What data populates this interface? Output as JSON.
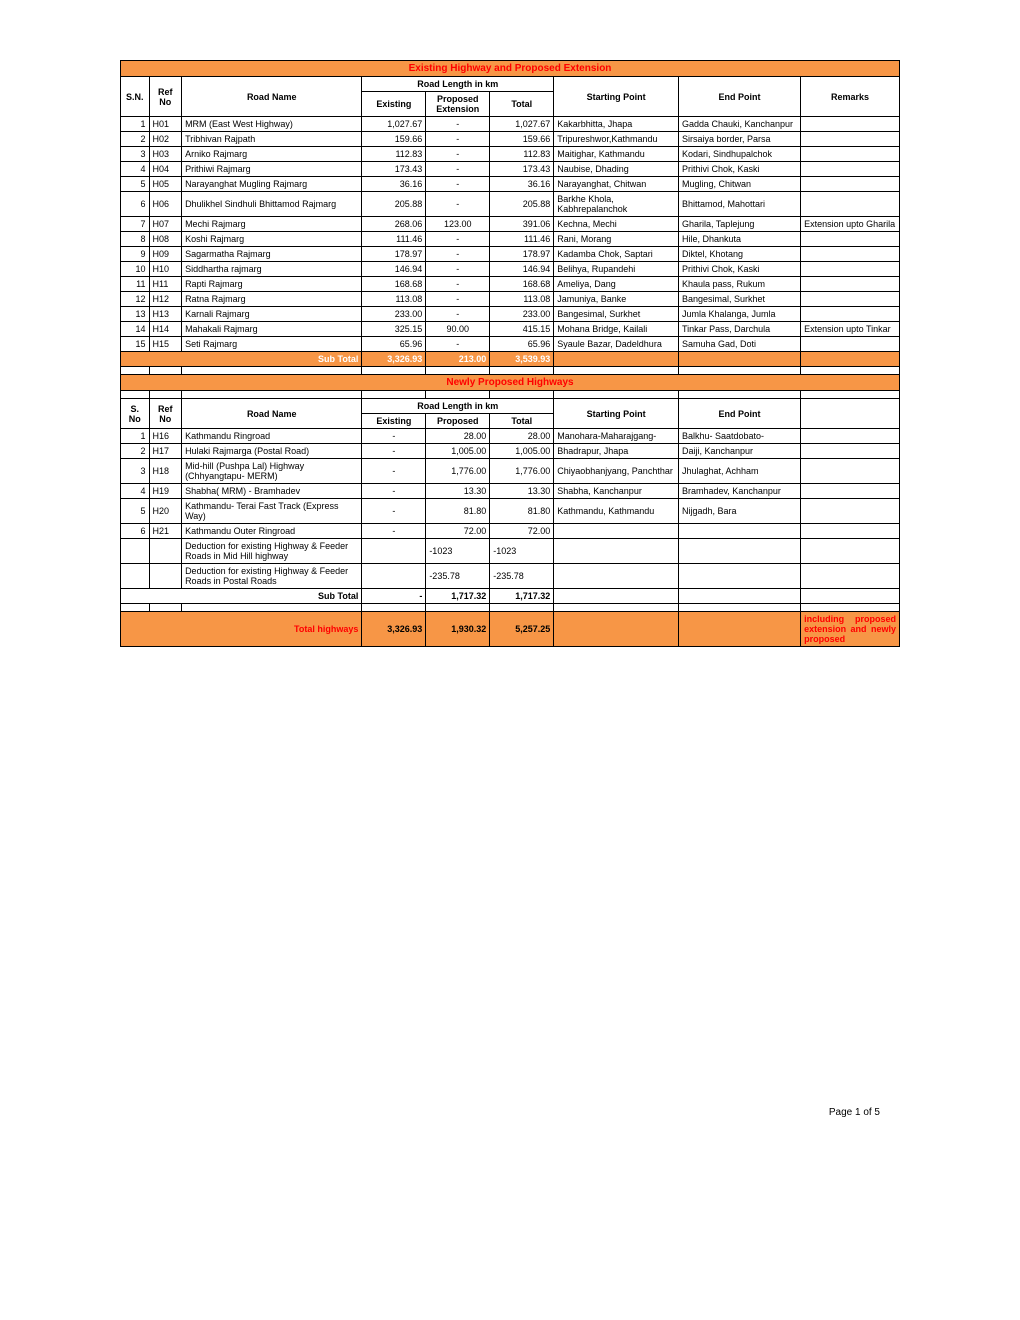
{
  "colors": {
    "header_bg": "#f79646",
    "header_text_red": "#ff0000",
    "subtotal_text": "#ffffff",
    "border": "#000000",
    "background": "#ffffff"
  },
  "section1": {
    "title": "Existing Highway and Proposed Extension",
    "roadLengthHeader": "Road Length in km",
    "headers": {
      "sn": "S.N.",
      "ref": "Ref No",
      "name": "Road Name",
      "existing": "Existing",
      "proposed": "Proposed Extension",
      "total": "Total",
      "start": "Starting Point",
      "end": "End Point",
      "remarks": "Remarks"
    },
    "rows": [
      {
        "sn": "1",
        "ref": "H01",
        "name": "MRM (East West Highway)",
        "existing": "1,027.67",
        "proposed": "-",
        "total": "1,027.67",
        "start": "Kakarbhitta, Jhapa",
        "end": "Gadda Chauki, Kanchanpur",
        "remarks": ""
      },
      {
        "sn": "2",
        "ref": "H02",
        "name": "Tribhivan Rajpath",
        "existing": "159.66",
        "proposed": "-",
        "total": "159.66",
        "start": "Tripureshwor,Kathmandu",
        "end": "Sirsaiya border, Parsa",
        "remarks": ""
      },
      {
        "sn": "3",
        "ref": "H03",
        "name": "Arniko Rajmarg",
        "existing": "112.83",
        "proposed": "-",
        "total": "112.83",
        "start": "Maitighar, Kathmandu",
        "end": "Kodari, Sindhupalchok",
        "remarks": ""
      },
      {
        "sn": "4",
        "ref": "H04",
        "name": "Prithiwi Rajmarg",
        "existing": "173.43",
        "proposed": "-",
        "total": "173.43",
        "start": "Naubise, Dhading",
        "end": "Prithivi Chok, Kaski",
        "remarks": ""
      },
      {
        "sn": "5",
        "ref": "H05",
        "name": "Narayanghat Mugling Rajmarg",
        "existing": "36.16",
        "proposed": "-",
        "total": "36.16",
        "start": "Narayanghat, Chitwan",
        "end": "Mugling, Chitwan",
        "remarks": ""
      },
      {
        "sn": "6",
        "ref": "H06",
        "name": "Dhulikhel Sindhuli Bhittamod Rajmarg",
        "existing": "205.88",
        "proposed": "-",
        "total": "205.88",
        "start": "Barkhe Khola, Kabhrepalanchok",
        "end": "Bhittamod, Mahottari",
        "remarks": ""
      },
      {
        "sn": "7",
        "ref": "H07",
        "name": "Mechi Rajmarg",
        "existing": "268.06",
        "proposed": "123.00",
        "total": "391.06",
        "start": "Kechna, Mechi",
        "end": "Gharila, Taplejung",
        "remarks": "Extension upto Gharila"
      },
      {
        "sn": "8",
        "ref": "H08",
        "name": "Koshi Rajmarg",
        "existing": "111.46",
        "proposed": "-",
        "total": "111.46",
        "start": "Rani, Morang",
        "end": "Hile, Dhankuta",
        "remarks": ""
      },
      {
        "sn": "9",
        "ref": "H09",
        "name": "Sagarmatha Rajmarg",
        "existing": "178.97",
        "proposed": "-",
        "total": "178.97",
        "start": "Kadamba Chok, Saptari",
        "end": "Diktel, Khotang",
        "remarks": ""
      },
      {
        "sn": "10",
        "ref": "H10",
        "name": "Siddhartha rajmarg",
        "existing": "146.94",
        "proposed": "-",
        "total": "146.94",
        "start": "Belihya, Rupandehi",
        "end": "Prithivi Chok, Kaski",
        "remarks": ""
      },
      {
        "sn": "11",
        "ref": "H11",
        "name": "Rapti Rajmarg",
        "existing": "168.68",
        "proposed": "-",
        "total": "168.68",
        "start": "Ameliya, Dang",
        "end": "Khaula pass, Rukum",
        "remarks": ""
      },
      {
        "sn": "12",
        "ref": "H12",
        "name": "Ratna Rajmarg",
        "existing": "113.08",
        "proposed": "-",
        "total": "113.08",
        "start": "Jamuniya, Banke",
        "end": "Bangesimal, Surkhet",
        "remarks": ""
      },
      {
        "sn": "13",
        "ref": "H13",
        "name": "Karnali Rajmarg",
        "existing": "233.00",
        "proposed": "-",
        "total": "233.00",
        "start": "Bangesimal, Surkhet",
        "end": "Jumla Khalanga, Jumla",
        "remarks": ""
      },
      {
        "sn": "14",
        "ref": "H14",
        "name": "Mahakali Rajmarg",
        "existing": "325.15",
        "proposed": "90.00",
        "total": "415.15",
        "start": "Mohana Bridge, Kailali",
        "end": "Tinkar Pass, Darchula",
        "remarks": "Extension upto Tinkar"
      },
      {
        "sn": "15",
        "ref": "H15",
        "name": "Seti Rajmarg",
        "existing": "65.96",
        "proposed": "-",
        "total": "65.96",
        "start": "Syaule Bazar, Dadeldhura",
        "end": "Samuha Gad, Doti",
        "remarks": ""
      }
    ],
    "subtotal": {
      "label": "Sub Total",
      "existing": "3,326.93",
      "proposed": "213.00",
      "total": "3,539.93"
    }
  },
  "section2": {
    "title": "Newly Proposed Highways",
    "roadLengthHeader": "Road Length in km",
    "headers": {
      "sn": "S. No",
      "ref": "Ref No",
      "name": "Road Name",
      "existing": "Existing",
      "proposed": "Proposed",
      "total": "Total",
      "start": "Starting Point",
      "end": "End Point"
    },
    "rows": [
      {
        "sn": "1",
        "ref": "H16",
        "name": "Kathmandu Ringroad",
        "existing": "-",
        "proposed": "28.00",
        "total": "28.00",
        "start": "Manohara-Maharajgang-",
        "end": "Balkhu- Saatdobato-",
        "remarks": ""
      },
      {
        "sn": "2",
        "ref": "H17",
        "name": "Hulaki Rajmarga (Postal Road)",
        "existing": "-",
        "proposed": "1,005.00",
        "total": "1,005.00",
        "start": "Bhadrapur, Jhapa",
        "end": "Daiji, Kanchanpur",
        "remarks": ""
      },
      {
        "sn": "3",
        "ref": "H18",
        "name": "Mid-hill (Pushpa Lal) Highway (Chhyangtapu- MERM)",
        "existing": "-",
        "proposed": "1,776.00",
        "total": "1,776.00",
        "start": "Chiyaobhanjyang, Panchthar",
        "end": "Jhulaghat, Achham",
        "remarks": ""
      },
      {
        "sn": "4",
        "ref": "H19",
        "name": "Shabha( MRM) - Bramhadev",
        "existing": "-",
        "proposed": "13.30",
        "total": "13.30",
        "start": "Shabha, Kanchanpur",
        "end": "Bramhadev, Kanchanpur",
        "remarks": ""
      },
      {
        "sn": "5",
        "ref": "H20",
        "name": "Kathmandu- Terai Fast Track (Express Way)",
        "existing": "-",
        "proposed": "81.80",
        "total": "81.80",
        "start": "Kathmandu, Kathmandu",
        "end": "Nijgadh, Bara",
        "remarks": ""
      },
      {
        "sn": "6",
        "ref": "H21",
        "name": "Kathmandu Outer Ringroad",
        "existing": "-",
        "proposed": "72.00",
        "total": "72.00",
        "start": "",
        "end": "",
        "remarks": ""
      }
    ],
    "deductions": [
      {
        "name": "Deduction for existing Highway & Feeder Roads in Mid Hill highway",
        "proposed": "-1023",
        "total": "-1023"
      },
      {
        "name": "Deduction for existing Highway & Feeder Roads in Postal Roads",
        "proposed": "-235.78",
        "total": "-235.78"
      }
    ],
    "subtotal": {
      "label": "Sub Total",
      "existing": "-",
      "proposed": "1,717.32",
      "total": "1,717.32"
    },
    "grandtotal": {
      "label": "Total highways",
      "existing": "3,326.93",
      "proposed": "1,930.32",
      "total": "5,257.25",
      "remarks": "including proposed extension and newly proposed"
    }
  },
  "footer": "Page 1 of 5"
}
